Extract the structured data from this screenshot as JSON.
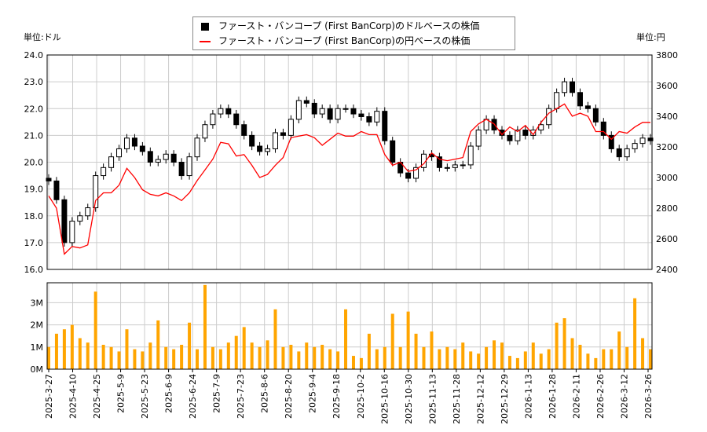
{
  "labels": {
    "left_unit": "単位:ドル",
    "right_unit": "単位:円"
  },
  "chart_data": [
    {
      "type": "candlestick+line",
      "xlim": [
        "2025-3-27",
        "2026-3-26"
      ],
      "legend": {
        "placement": "top-center",
        "entries": [
          "ファースト・バンコープ (First BanCorp)のドルベースの株価",
          "ファースト・バンコープ (First BanCorp)の円ベースの株価"
        ]
      },
      "yleft": {
        "ylim": [
          16,
          24
        ],
        "ticks": [
          "16.0",
          "17.0",
          "18.0",
          "19.0",
          "20.0",
          "21.0",
          "22.0",
          "23.0",
          "24.0"
        ]
      },
      "yright": {
        "ylim": [
          2400,
          3800
        ],
        "ticks": [
          "2400",
          "2600",
          "2800",
          "3000",
          "3200",
          "3400",
          "3600",
          "3800"
        ]
      },
      "grid": true,
      "colors": {
        "usd": "#000000",
        "jpy": "#ff0000"
      },
      "series": [
        {
          "name": "ファースト・バンコープ (First BanCorp)のドルベースの株価",
          "values": [
            19.3,
            18.6,
            17.0,
            17.8,
            18.0,
            18.3,
            19.5,
            19.8,
            20.2,
            20.5,
            20.9,
            20.6,
            20.4,
            20.0,
            20.1,
            20.3,
            20.0,
            19.5,
            20.2,
            20.9,
            21.4,
            21.8,
            22.0,
            21.8,
            21.4,
            21.0,
            20.6,
            20.4,
            20.5,
            21.1,
            21.0,
            21.6,
            22.3,
            22.2,
            21.8,
            22.0,
            21.6,
            22.0,
            22.0,
            21.8,
            21.7,
            21.5,
            21.9,
            20.8,
            20.0,
            19.6,
            19.4,
            19.8,
            20.3,
            20.2,
            19.8,
            19.8,
            19.9,
            19.9,
            20.6,
            21.2,
            21.6,
            21.2,
            21.0,
            20.8,
            21.2,
            21.0,
            21.2,
            21.4,
            22.0,
            22.6,
            23.0,
            22.6,
            22.1,
            22.0,
            21.5,
            21.0,
            20.5,
            20.2,
            20.5,
            20.7,
            20.9,
            20.8
          ]
        },
        {
          "name": "ファースト・バンコープ (First BanCorp)の円ベースの株価",
          "values": [
            2880,
            2800,
            2500,
            2550,
            2540,
            2560,
            2850,
            2900,
            2900,
            2950,
            3060,
            3000,
            2920,
            2890,
            2880,
            2900,
            2880,
            2850,
            2900,
            2980,
            3050,
            3120,
            3230,
            3220,
            3140,
            3150,
            3080,
            3000,
            3020,
            3080,
            3130,
            3260,
            3270,
            3280,
            3260,
            3210,
            3250,
            3290,
            3270,
            3270,
            3300,
            3280,
            3280,
            3150,
            3080,
            3100,
            3040,
            3050,
            3090,
            3160,
            3120,
            3110,
            3120,
            3130,
            3300,
            3350,
            3380,
            3350,
            3280,
            3330,
            3300,
            3340,
            3280,
            3360,
            3420,
            3450,
            3480,
            3400,
            3420,
            3400,
            3300,
            3300,
            3250,
            3300,
            3290,
            3330,
            3360,
            3360
          ]
        }
      ]
    },
    {
      "type": "bar",
      "ylim": [
        0,
        3.9
      ],
      "yticks": [
        "0M",
        "1M",
        "2M",
        "3M"
      ],
      "color": "#ffa500",
      "xticks": [
        "2025-3-27",
        "2025-4-10",
        "2025-4-25",
        "2025-5-9",
        "2025-5-23",
        "2025-6-9",
        "2025-6-24",
        "2025-7-9",
        "2025-7-23",
        "2025-8-6",
        "2025-8-20",
        "2025-9-4",
        "2025-9-18",
        "2025-10-2",
        "2025-10-16",
        "2025-10-30",
        "2025-11-13",
        "2025-11-28",
        "2025-12-12",
        "2025-12-29",
        "2026-1-13",
        "2026-1-28",
        "2026-2-11",
        "2026-2-26",
        "2026-3-12",
        "2026-3-26"
      ],
      "values": [
        1.0,
        1.6,
        1.8,
        2.0,
        1.4,
        1.2,
        3.5,
        1.1,
        1.0,
        0.8,
        1.8,
        0.9,
        0.8,
        1.2,
        2.2,
        1.0,
        0.9,
        1.1,
        2.1,
        0.9,
        3.8,
        1.0,
        0.9,
        1.2,
        1.5,
        1.9,
        1.2,
        1.0,
        1.3,
        2.7,
        1.0,
        1.1,
        0.8,
        1.2,
        1.0,
        1.1,
        0.9,
        0.8,
        2.7,
        0.6,
        0.5,
        1.6,
        0.9,
        1.0,
        2.5,
        1.0,
        2.6,
        1.6,
        1.0,
        1.7,
        0.9,
        1.0,
        0.9,
        1.2,
        0.8,
        0.7,
        1.0,
        1.3,
        1.2,
        0.6,
        0.5,
        0.8,
        1.2,
        0.7,
        0.9,
        2.1,
        2.3,
        1.4,
        1.1,
        0.7,
        0.5,
        0.9,
        0.9,
        1.7,
        1.0,
        3.2,
        1.4,
        0.9
      ]
    }
  ]
}
